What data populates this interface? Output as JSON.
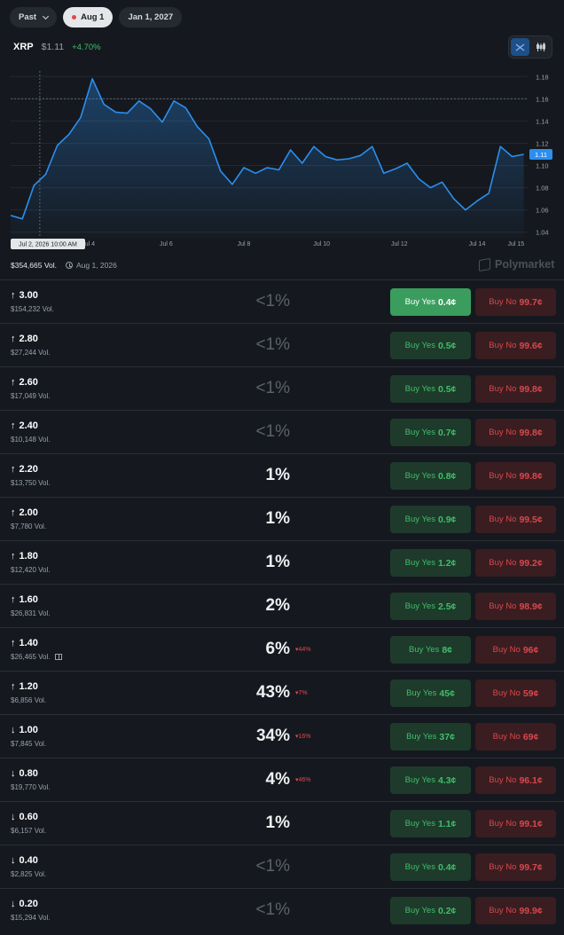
{
  "filters": {
    "past_label": "Past",
    "active_label": "Aug 1",
    "other_label": "Jan 1, 2027"
  },
  "asset": {
    "symbol": "XRP",
    "price": "$1.11",
    "change": "+4.70%"
  },
  "chart_toggle": {
    "line_icon": "line-chart-icon",
    "candle_icon": "candlestick-icon",
    "active": "line"
  },
  "colors": {
    "accent": "#2b8ff0",
    "yes": "#3fbf6a",
    "no": "#d9474c",
    "background": "#15191f"
  },
  "chart_data": {
    "type": "line",
    "x_ticks": [
      "Jul 4",
      "Jul 6",
      "Jul 8",
      "Jul 10",
      "Jul 12",
      "Jul 14",
      "Jul 15"
    ],
    "y_ticks": [
      "1.18",
      "1.16",
      "1.14",
      "1.12",
      "1.10",
      "1.08",
      "1.06",
      "1.04"
    ],
    "ylim": [
      1.035,
      1.185
    ],
    "hover_label": "Jul 2, 2026 10:00 AM",
    "current_price_label": "1.11",
    "current_price": 1.11,
    "reference_price": 1.16,
    "x": [
      2.0,
      2.3,
      2.6,
      2.9,
      3.2,
      3.5,
      3.8,
      4.1,
      4.4,
      4.7,
      5.0,
      5.3,
      5.6,
      5.9,
      6.2,
      6.5,
      6.8,
      7.1,
      7.4,
      7.7,
      8.0,
      8.3,
      8.6,
      8.9,
      9.2,
      9.5,
      9.8,
      10.1,
      10.4,
      10.7,
      11.0,
      11.3,
      11.6,
      11.9,
      12.2,
      12.5,
      12.8,
      13.1,
      13.4,
      13.7,
      14.0,
      14.3,
      14.6,
      14.9,
      15.2
    ],
    "values": [
      1.055,
      1.052,
      1.082,
      1.092,
      1.118,
      1.128,
      1.143,
      1.178,
      1.155,
      1.148,
      1.147,
      1.158,
      1.151,
      1.139,
      1.158,
      1.152,
      1.135,
      1.124,
      1.095,
      1.083,
      1.098,
      1.093,
      1.098,
      1.096,
      1.114,
      1.102,
      1.117,
      1.108,
      1.105,
      1.106,
      1.109,
      1.117,
      1.093,
      1.097,
      1.102,
      1.088,
      1.08,
      1.085,
      1.07,
      1.06,
      1.068,
      1.075,
      1.117,
      1.108,
      1.11
    ]
  },
  "summary": {
    "volume": "$354,665 Vol.",
    "date": "Aug 1, 2026",
    "brand": "Polymarket"
  },
  "markets": [
    {
      "dir": "up",
      "arrow": "↑",
      "label": "3.00",
      "vol": "$154,232 Vol.",
      "pct": "<1%",
      "dim": true,
      "change": "",
      "yes_label": "Buy Yes",
      "yes_price": "0.4¢",
      "no_label": "Buy No",
      "no_price": "99.7¢",
      "primary": true
    },
    {
      "dir": "up",
      "arrow": "↑",
      "label": "2.80",
      "vol": "$27,244 Vol.",
      "pct": "<1%",
      "dim": true,
      "change": "",
      "yes_label": "Buy Yes",
      "yes_price": "0.5¢",
      "no_label": "Buy No",
      "no_price": "99.6¢"
    },
    {
      "dir": "up",
      "arrow": "↑",
      "label": "2.60",
      "vol": "$17,049 Vol.",
      "pct": "<1%",
      "dim": true,
      "change": "",
      "yes_label": "Buy Yes",
      "yes_price": "0.5¢",
      "no_label": "Buy No",
      "no_price": "99.8¢"
    },
    {
      "dir": "up",
      "arrow": "↑",
      "label": "2.40",
      "vol": "$10,148 Vol.",
      "pct": "<1%",
      "dim": true,
      "change": "",
      "yes_label": "Buy Yes",
      "yes_price": "0.7¢",
      "no_label": "Buy No",
      "no_price": "99.8¢"
    },
    {
      "dir": "up",
      "arrow": "↑",
      "label": "2.20",
      "vol": "$13,750 Vol.",
      "pct": "1%",
      "dim": false,
      "change": "",
      "yes_label": "Buy Yes",
      "yes_price": "0.8¢",
      "no_label": "Buy No",
      "no_price": "99.8¢"
    },
    {
      "dir": "up",
      "arrow": "↑",
      "label": "2.00",
      "vol": "$7,780 Vol.",
      "pct": "1%",
      "dim": false,
      "change": "",
      "yes_label": "Buy Yes",
      "yes_price": "0.9¢",
      "no_label": "Buy No",
      "no_price": "99.5¢"
    },
    {
      "dir": "up",
      "arrow": "↑",
      "label": "1.80",
      "vol": "$12,420 Vol.",
      "pct": "1%",
      "dim": false,
      "change": "",
      "yes_label": "Buy Yes",
      "yes_price": "1.2¢",
      "no_label": "Buy No",
      "no_price": "99.2¢"
    },
    {
      "dir": "up",
      "arrow": "↑",
      "label": "1.60",
      "vol": "$26,831 Vol.",
      "pct": "2%",
      "dim": false,
      "change": "",
      "yes_label": "Buy Yes",
      "yes_price": "2.5¢",
      "no_label": "Buy No",
      "no_price": "98.9¢"
    },
    {
      "dir": "up",
      "arrow": "↑",
      "label": "1.40",
      "vol": "$26,465 Vol.",
      "gift": true,
      "pct": "6%",
      "dim": false,
      "change": "▾44%",
      "yes_label": "Buy Yes",
      "yes_price": "8¢",
      "no_label": "Buy No",
      "no_price": "96¢"
    },
    {
      "dir": "up",
      "arrow": "↑",
      "label": "1.20",
      "vol": "$6,856 Vol.",
      "pct": "43%",
      "dim": false,
      "change": "▾7%",
      "yes_label": "Buy Yes",
      "yes_price": "45¢",
      "no_label": "Buy No",
      "no_price": "59¢"
    },
    {
      "dir": "down",
      "arrow": "↓",
      "label": "1.00",
      "vol": "$7,845 Vol.",
      "pct": "34%",
      "dim": false,
      "change": "▾16%",
      "yes_label": "Buy Yes",
      "yes_price": "37¢",
      "no_label": "Buy No",
      "no_price": "69¢"
    },
    {
      "dir": "down",
      "arrow": "↓",
      "label": "0.80",
      "vol": "$19,770 Vol.",
      "pct": "4%",
      "dim": false,
      "change": "▾46%",
      "yes_label": "Buy Yes",
      "yes_price": "4.3¢",
      "no_label": "Buy No",
      "no_price": "96.1¢"
    },
    {
      "dir": "down",
      "arrow": "↓",
      "label": "0.60",
      "vol": "$6,157 Vol.",
      "pct": "1%",
      "dim": false,
      "change": "",
      "yes_label": "Buy Yes",
      "yes_price": "1.1¢",
      "no_label": "Buy No",
      "no_price": "99.1¢"
    },
    {
      "dir": "down",
      "arrow": "↓",
      "label": "0.40",
      "vol": "$2,825 Vol.",
      "pct": "<1%",
      "dim": true,
      "change": "",
      "yes_label": "Buy Yes",
      "yes_price": "0.4¢",
      "no_label": "Buy No",
      "no_price": "99.7¢"
    },
    {
      "dir": "down",
      "arrow": "↓",
      "label": "0.20",
      "vol": "$15,294 Vol.",
      "pct": "<1%",
      "dim": true,
      "change": "",
      "yes_label": "Buy Yes",
      "yes_price": "0.2¢",
      "no_label": "Buy No",
      "no_price": "99.9¢"
    }
  ]
}
